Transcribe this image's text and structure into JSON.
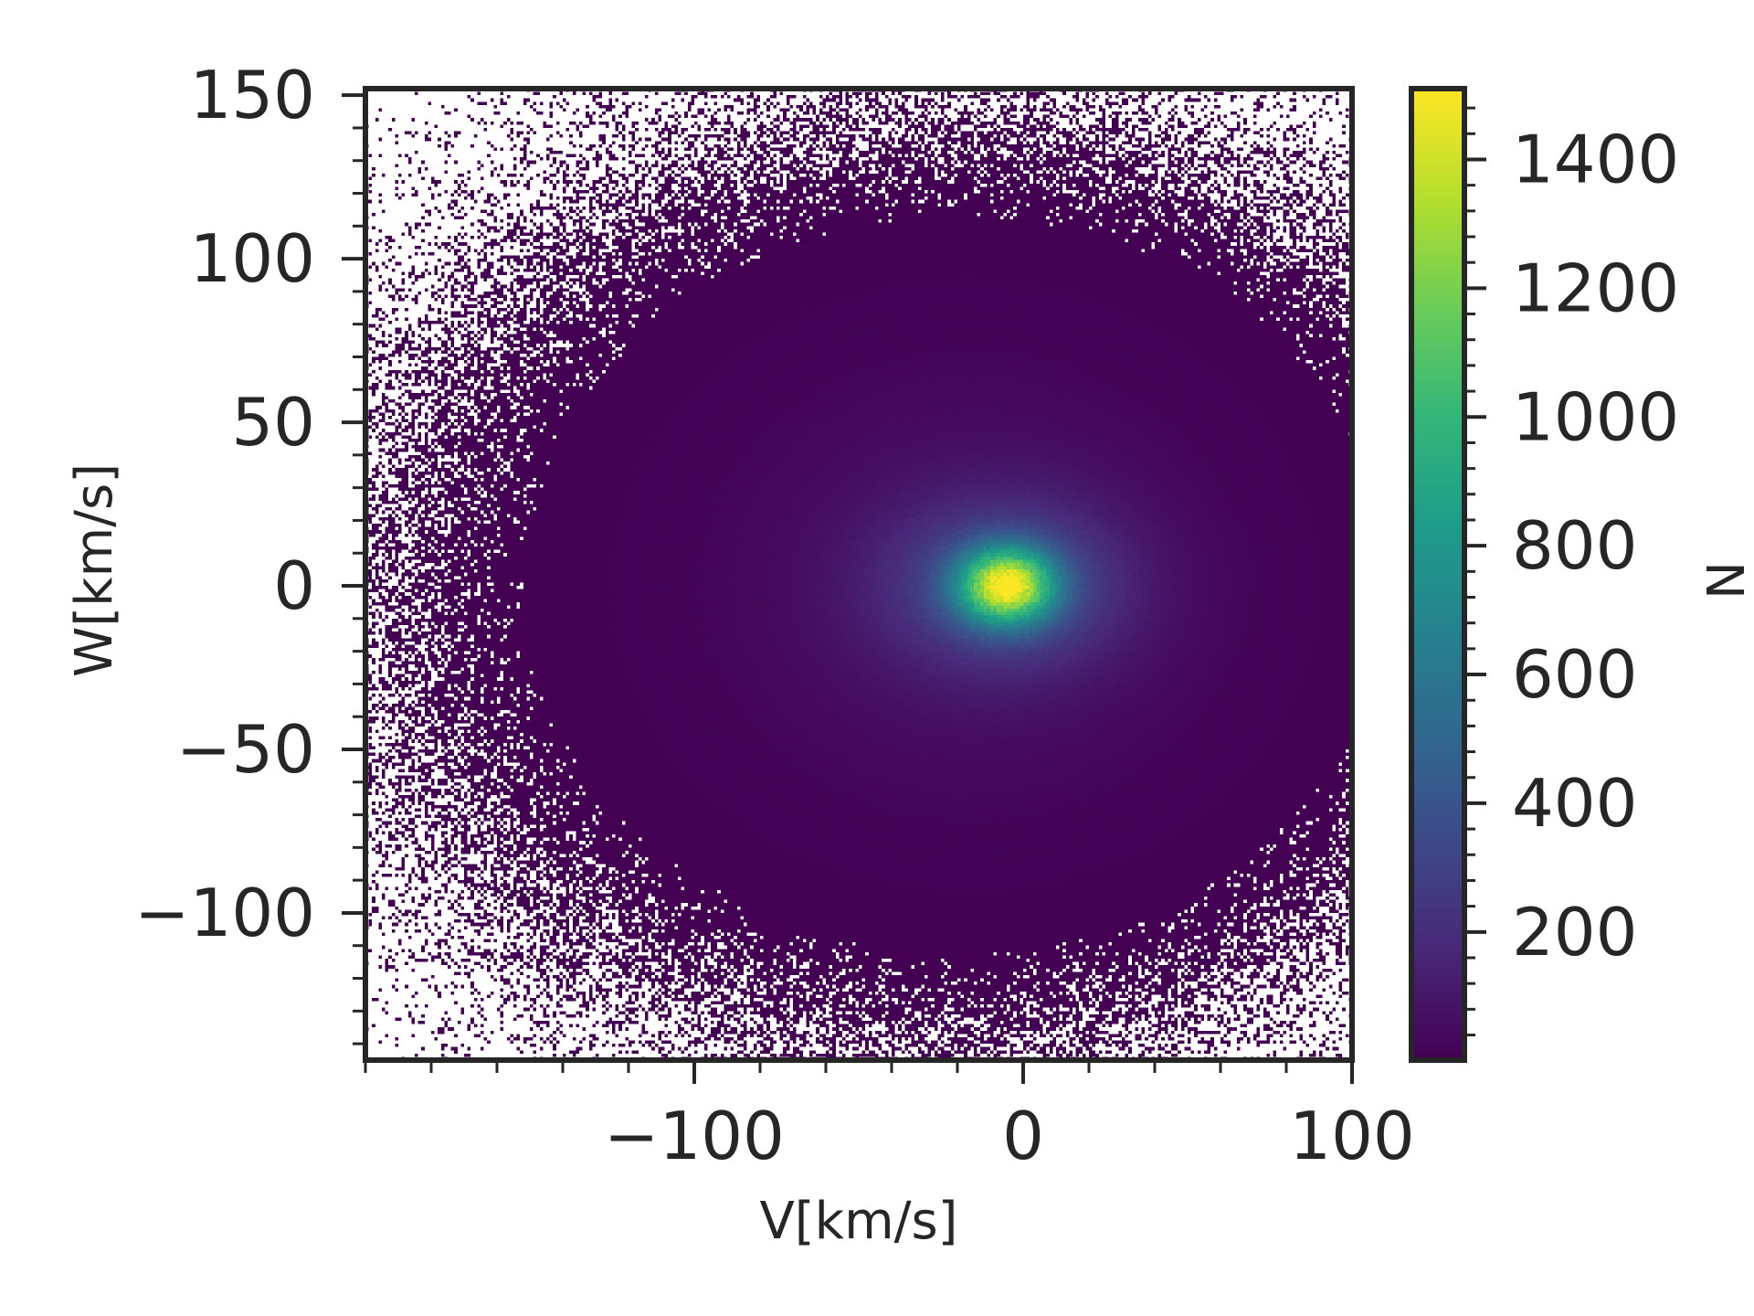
{
  "chart_data": {
    "type": "heatmap",
    "xlabel": "V[km/s]",
    "ylabel": "W[km/s]",
    "xlim": [
      -200,
      100
    ],
    "ylim": [
      -145,
      152
    ],
    "x_ticks": [
      -100,
      0,
      100
    ],
    "x_tick_labels": [
      "−100",
      "0",
      "100"
    ],
    "y_ticks": [
      150,
      100,
      50,
      0,
      -50,
      -100
    ],
    "y_tick_labels": [
      "150",
      "100",
      "50",
      "0",
      "−50",
      "−100"
    ],
    "grid": false,
    "colormap": "viridis",
    "colorbar": {
      "label": "N",
      "range": [
        1,
        1510
      ],
      "ticks": [
        200,
        400,
        600,
        800,
        1000,
        1200,
        1400
      ],
      "tick_labels": [
        "200",
        "400",
        "600",
        "800",
        "1000",
        "1200",
        "1400"
      ]
    },
    "peak": {
      "x": -5,
      "y": 0,
      "value": 1500
    },
    "bin_size": [
      1,
      1
    ],
    "colors": {
      "axis": "#262626",
      "background": "#ffffff",
      "empty_bin": "#ffffff"
    }
  }
}
